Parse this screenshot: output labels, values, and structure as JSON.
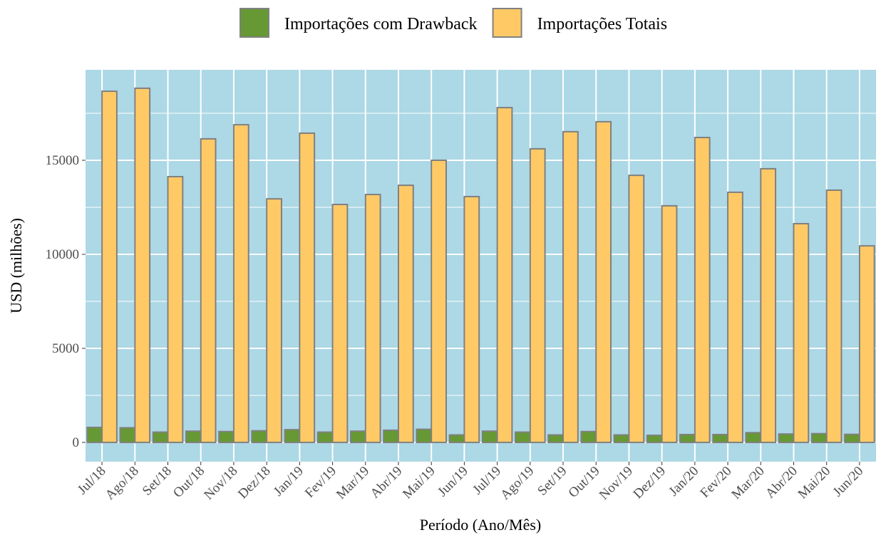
{
  "chart_data": {
    "type": "bar",
    "x_label": "Período (Ano/Mês)",
    "y_label": "USD (milhões)",
    "categories": [
      "Jul/18",
      "Ago/18",
      "Set/18",
      "Out/18",
      "Nov/18",
      "Dez/18",
      "Jan/19",
      "Fev/19",
      "Mar/19",
      "Abr/19",
      "Mai/19",
      "Jun/19",
      "Jul/19",
      "Ago/19",
      "Set/19",
      "Out/19",
      "Nov/19",
      "Dez/19",
      "Jan/20",
      "Fev/20",
      "Mar/20",
      "Abr/20",
      "Mai/20",
      "Jun/20"
    ],
    "series": [
      {
        "name": "Importações com Drawback",
        "color": "#669933",
        "values": [
          800,
          780,
          550,
          600,
          580,
          620,
          680,
          550,
          600,
          650,
          700,
          400,
          600,
          550,
          400,
          580,
          400,
          380,
          420,
          420,
          520,
          450,
          470,
          430
        ]
      },
      {
        "name": "Importações Totais",
        "color": "#ffca66",
        "values": [
          18670,
          18830,
          14130,
          16140,
          16890,
          12950,
          16440,
          12650,
          13180,
          13670,
          15000,
          13070,
          17800,
          15610,
          16520,
          17050,
          14200,
          12580,
          16210,
          13300,
          14550,
          11630,
          13410,
          10450
        ]
      }
    ],
    "ylim": [
      -1020,
      19810
    ],
    "yticks": [
      0,
      5000,
      10000,
      15000
    ],
    "grid": true,
    "legend": "top"
  }
}
